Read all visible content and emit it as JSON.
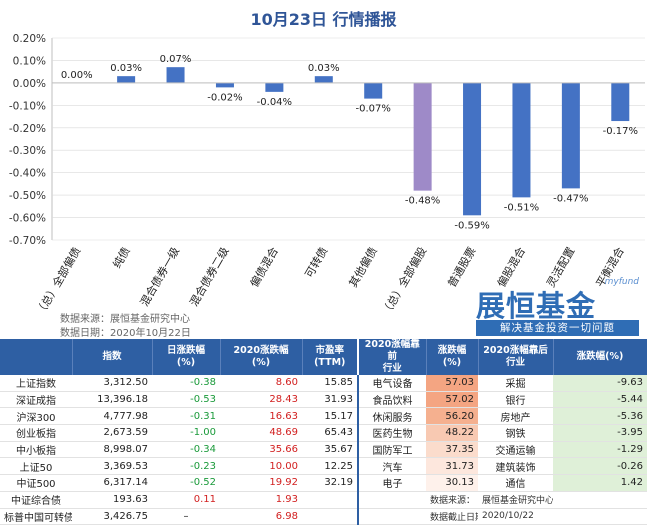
{
  "title": "10月23日  行情播报",
  "chart_data": {
    "type": "bar",
    "categories": [
      "（总）全部偏债",
      "纯债",
      "混合债券一级",
      "混合债券二级",
      "偏债混合",
      "可转债",
      "其他偏债",
      "（总）全部偏股",
      "普通股票",
      "偏股混合",
      "灵活配置",
      "平衡混合"
    ],
    "values": [
      0.0,
      0.03,
      0.07,
      -0.02,
      -0.04,
      0.03,
      -0.07,
      -0.48,
      -0.59,
      -0.51,
      -0.47,
      -0.17
    ],
    "value_labels": [
      "0.00%",
      "0.03%",
      "0.07%",
      "-0.02%",
      "-0.04%",
      "0.03%",
      "-0.07%",
      "-0.48%",
      "-0.59%",
      "-0.51%",
      "-0.47%",
      "-0.17%"
    ],
    "highlight_index": 7,
    "ylim": [
      -0.7,
      0.2
    ],
    "y_ticks": [
      0.2,
      0.1,
      0.0,
      -0.1,
      -0.2,
      -0.3,
      -0.4,
      -0.5,
      -0.6,
      -0.7
    ],
    "y_tick_labels": [
      "0.20%",
      "0.10%",
      "0.00%",
      "-0.10%",
      "-0.20%",
      "-0.30%",
      "-0.40%",
      "-0.50%",
      "-0.60%",
      "-0.70%"
    ],
    "colors": {
      "bar": "#4472c4",
      "highlight": "#9e8ac8",
      "grid": "#d9d9d9"
    }
  },
  "source_line1": "数据来源：展恒基金研究中心",
  "source_line2": "数据日期：2020年10月22日",
  "logo": {
    "myfund": "myfund",
    "brand": "展恒基金",
    "slogan": "解决基金投资一切问题"
  },
  "table": {
    "headers": [
      "",
      "指数",
      "日涨跌幅\n(%)",
      "2020涨跌幅\n(%)",
      "市盈率\n(TTM)",
      "2020涨幅靠前\n行业",
      "涨跌幅\n(%)",
      "2020涨幅靠后\n行业",
      "涨跌幅(%)"
    ],
    "rows": [
      [
        "上证指数",
        "3,312.50",
        "-0.38",
        "8.60",
        "15.85",
        "电气设备",
        "57.03",
        "采掘",
        "-9.63"
      ],
      [
        "深证成指",
        "13,396.18",
        "-0.53",
        "28.43",
        "31.93",
        "食品饮料",
        "57.02",
        "银行",
        "-5.44"
      ],
      [
        "沪深300",
        "4,777.98",
        "-0.31",
        "16.63",
        "15.17",
        "休闲服务",
        "56.20",
        "房地产",
        "-5.36"
      ],
      [
        "创业板指",
        "2,673.59",
        "-1.00",
        "48.69",
        "65.43",
        "医药生物",
        "48.22",
        "钢铁",
        "-3.95"
      ],
      [
        "中小板指",
        "8,998.07",
        "-0.34",
        "35.66",
        "35.67",
        "国防军工",
        "37.35",
        "交通运输",
        "-1.29"
      ],
      [
        "上证50",
        "3,369.53",
        "-0.23",
        "10.00",
        "12.25",
        "汽车",
        "31.73",
        "建筑装饰",
        "-0.26"
      ],
      [
        "中证500",
        "6,317.14",
        "-0.52",
        "19.92",
        "32.19",
        "电子",
        "30.13",
        "通信",
        "1.42"
      ],
      [
        "中证综合债",
        "193.63",
        "0.11",
        "1.93",
        "",
        "",
        "",
        "",
        ""
      ],
      [
        "标普中国可转债指数",
        "3,426.75",
        "–",
        "6.98",
        "",
        "",
        "",
        "",
        ""
      ]
    ],
    "footer_source_label": "数据来源：",
    "footer_source_value": "展恒基金研究中心",
    "footer_date_label": "数据截止日期：",
    "footer_date_value": "2020/10/22",
    "heat_colors": [
      "#f4a582",
      "#f4a582",
      "#f5b08f",
      "#f8c9b2",
      "#fbdccc",
      "#fde7dd",
      "#fef1eb"
    ]
  }
}
